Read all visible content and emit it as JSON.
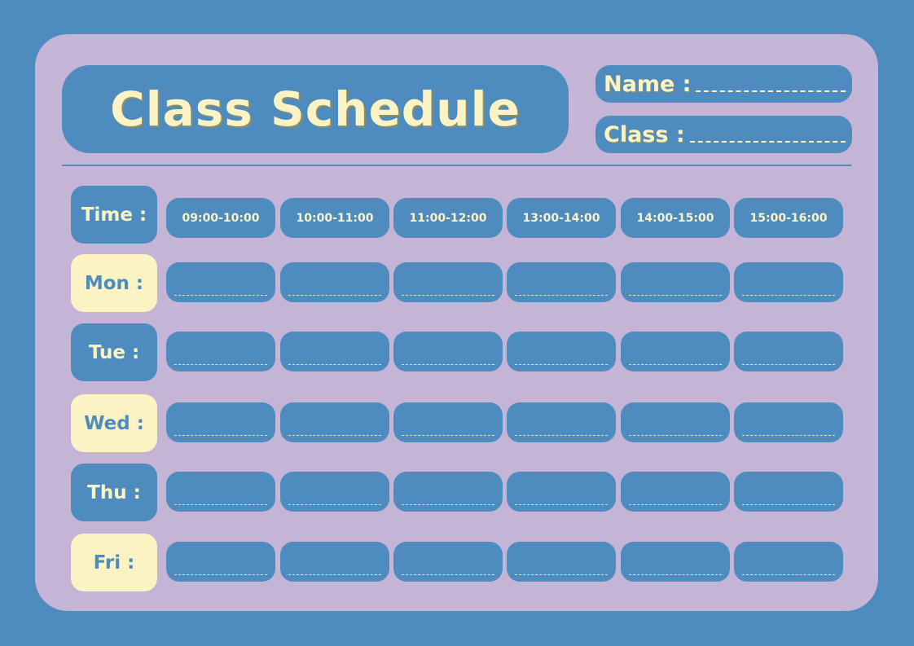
{
  "title": "Class Schedule",
  "fields": {
    "name_label": "Name :",
    "class_label": "Class :"
  },
  "time_label": "Time :",
  "time_slots": [
    "09:00-10:00",
    "10:00-11:00",
    "11:00-12:00",
    "13:00-14:00",
    "14:00-15:00",
    "15:00-16:00"
  ],
  "days": [
    {
      "label": "Mon :",
      "style": "cream"
    },
    {
      "label": "Tue :",
      "style": "blue"
    },
    {
      "label": "Wed :",
      "style": "cream"
    },
    {
      "label": "Thu :",
      "style": "blue"
    },
    {
      "label": "Fri :",
      "style": "cream"
    }
  ],
  "colors": {
    "background": "#4e8bbf",
    "card": "#c4b4d6",
    "accent": "#fcf3c4"
  }
}
